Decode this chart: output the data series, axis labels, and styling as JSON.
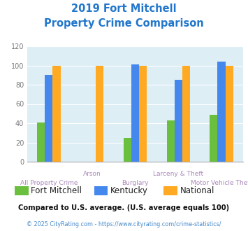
{
  "title_line1": "2019 Fort Mitchell",
  "title_line2": "Property Crime Comparison",
  "categories": [
    "All Property Crime",
    "Arson",
    "Burglary",
    "Larceny & Theft",
    "Motor Vehicle Theft"
  ],
  "series": {
    "Fort Mitchell": [
      41,
      0,
      25,
      43,
      49
    ],
    "Kentucky": [
      90,
      0,
      101,
      85,
      104
    ],
    "National": [
      100,
      100,
      100,
      100,
      100
    ]
  },
  "colors": {
    "Fort Mitchell": "#6abf3f",
    "Kentucky": "#4488ee",
    "National": "#ffaa22"
  },
  "ylim": [
    0,
    120
  ],
  "yticks": [
    0,
    20,
    40,
    60,
    80,
    100,
    120
  ],
  "title_color": "#2277cc",
  "xlabel_color_row1": "#aa88bb",
  "xlabel_color_row2": "#aa88bb",
  "ylabel_color": "#777777",
  "bg_color": "#ddeef5",
  "fig_bg_color": "#ffffff",
  "footnote1": "Compared to U.S. average. (U.S. average equals 100)",
  "footnote2": "© 2025 CityRating.com - https://www.cityrating.com/crime-statistics/",
  "footnote1_color": "#111111",
  "footnote2_color": "#4488cc",
  "title_fontsize": 10.5,
  "legend_fontsize": 8.5,
  "bar_width": 0.18
}
